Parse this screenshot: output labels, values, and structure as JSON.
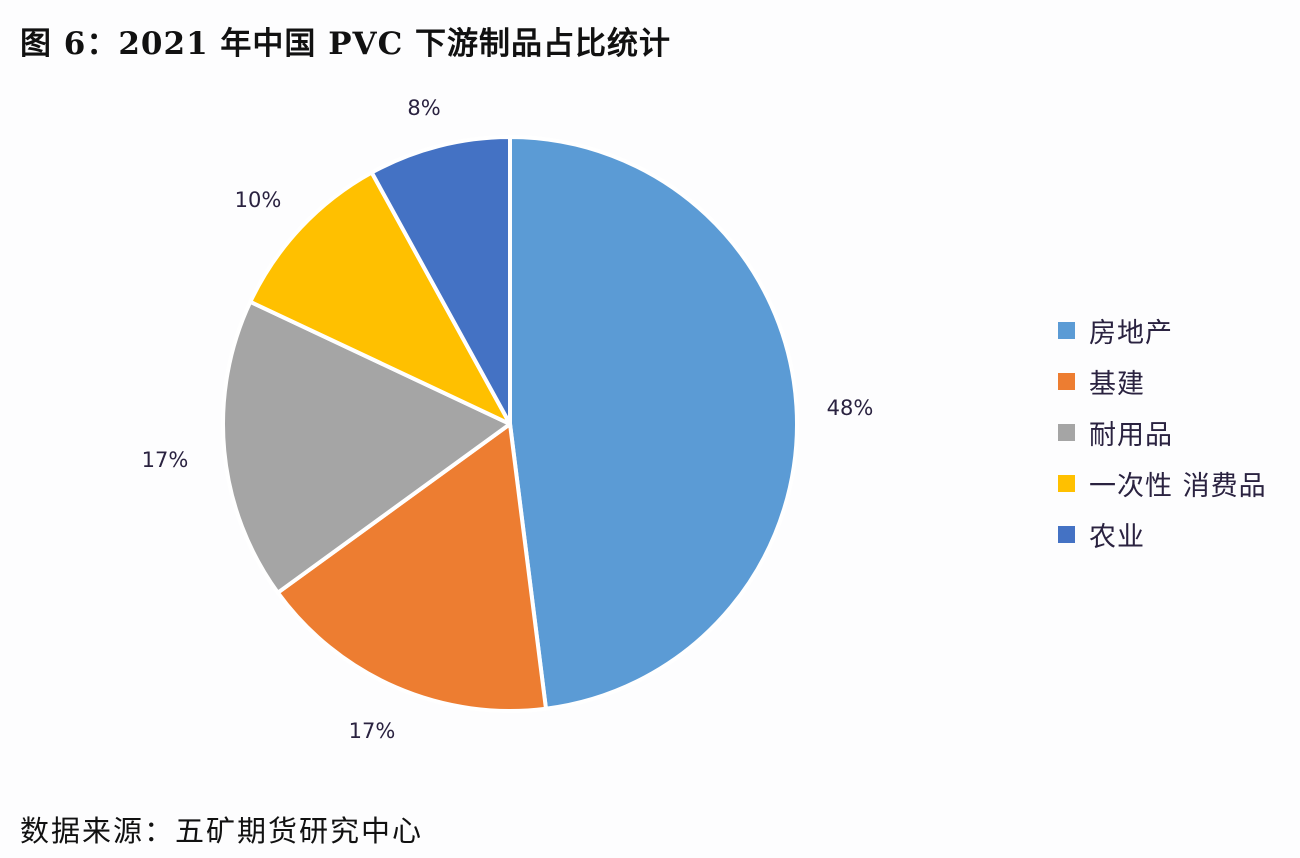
{
  "title": "图 6：2021 年中国 PVC 下游制品占比统计",
  "source": "数据来源：五矿期货研究中心",
  "chart_data": {
    "type": "pie",
    "title": "图 6：2021 年中国 PVC 下游制品占比统计",
    "categories": [
      "房地产",
      "基建",
      "耐用品",
      "一次性 消费品",
      "农业"
    ],
    "values": [
      48,
      17,
      17,
      10,
      8
    ],
    "labels": [
      "48%",
      "17%",
      "17%",
      "10%",
      "8%"
    ],
    "colors": [
      "#5b9bd5",
      "#ed7d31",
      "#a5a5a5",
      "#ffc000",
      "#4472c4"
    ],
    "start_angle": "12 o'clock, clockwise",
    "legend_position": "right"
  }
}
